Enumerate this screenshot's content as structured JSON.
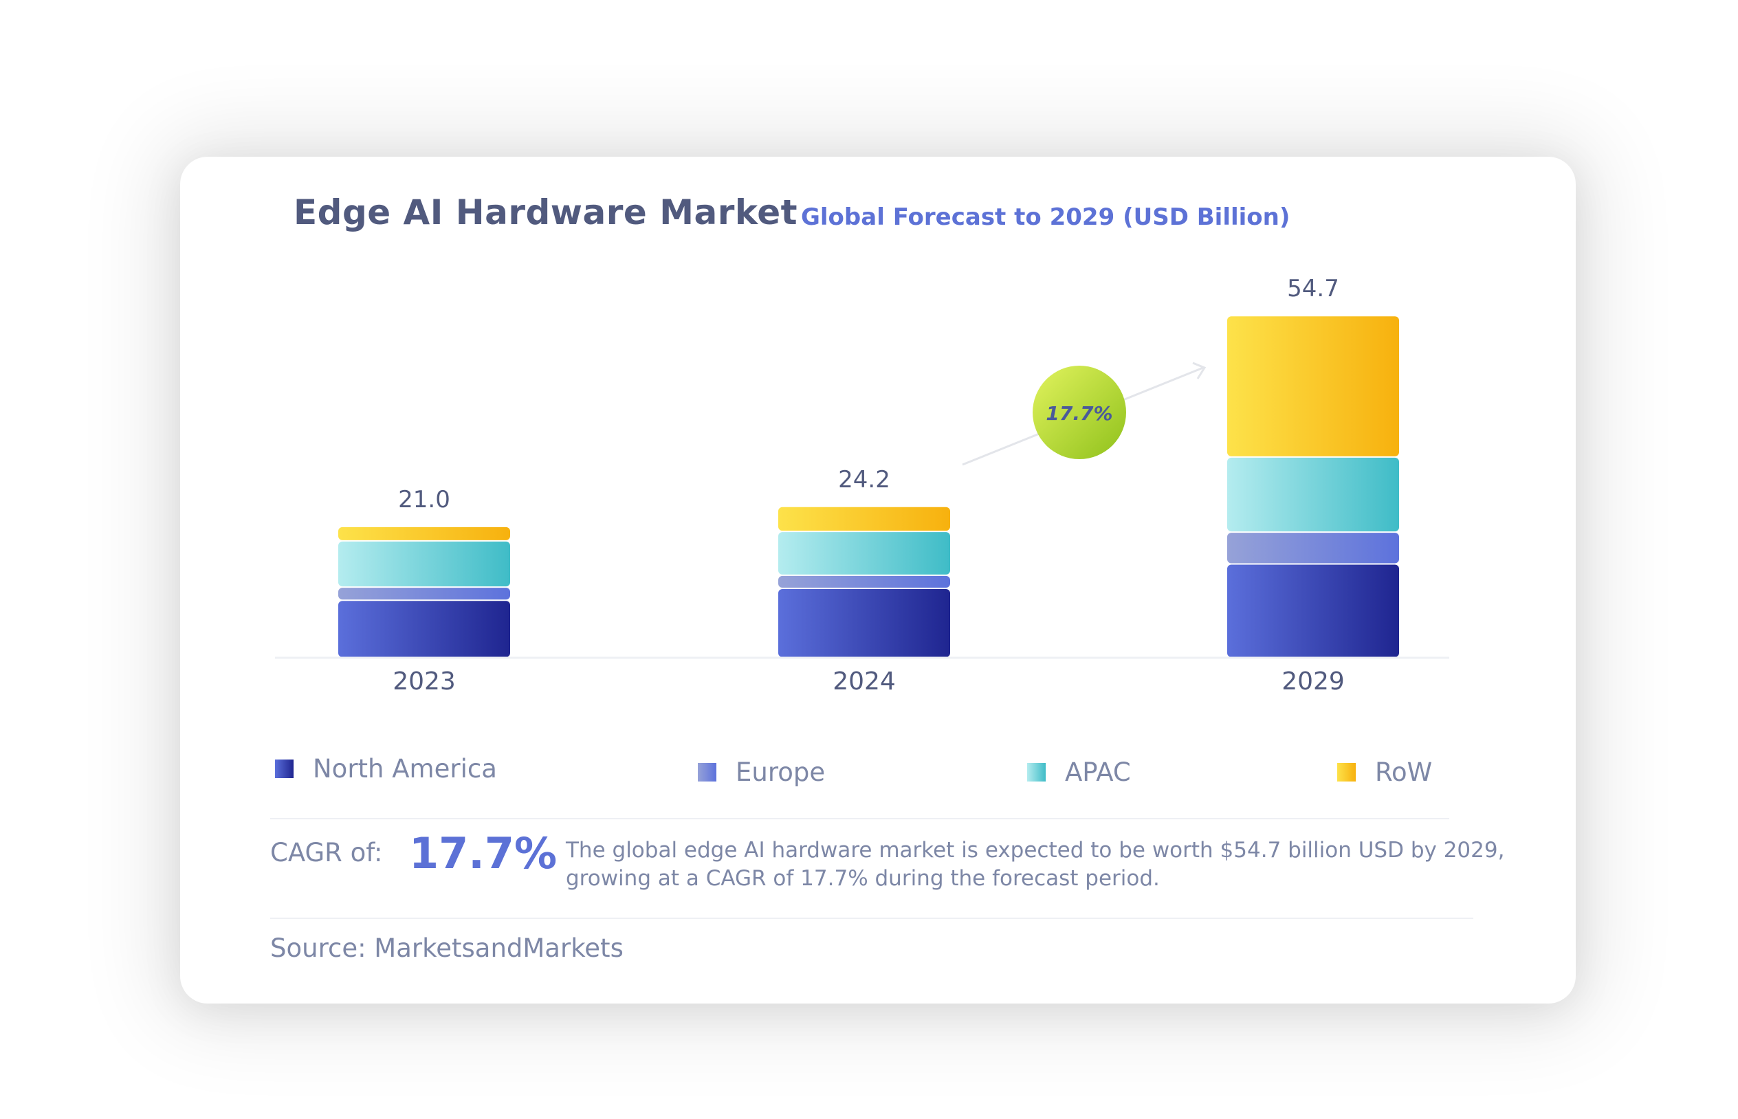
{
  "header": {
    "title": "Edge AI Hardware Market",
    "subtitle": "Global Forecast to 2029 (USD Billion)"
  },
  "chart_data": {
    "type": "bar",
    "stacked": true,
    "categories": [
      "2023",
      "2024",
      "2029"
    ],
    "series": [
      {
        "name": "North America",
        "values": [
          9.2,
          11.1,
          15.0
        ]
      },
      {
        "name": "Europe",
        "values": [
          2.1,
          2.1,
          5.1
        ]
      },
      {
        "name": "APAC",
        "values": [
          7.4,
          7.0,
          12.0
        ]
      },
      {
        "name": "RoW",
        "values": [
          2.3,
          4.0,
          22.6
        ]
      }
    ],
    "totals": [
      21.0,
      24.2,
      54.7
    ],
    "total_labels": [
      "21.0",
      "24.2",
      "54.7"
    ],
    "growth_badge": "17.7%",
    "legend": [
      "North America",
      "Europe",
      "APAC",
      "RoW"
    ],
    "legend_position": "bottom"
  },
  "colors": {
    "north_america": [
      "#5b6fdb",
      "#1f2590"
    ],
    "europe": [
      "#96a2d8",
      "#5d72dc"
    ],
    "apac": [
      "#b4ecef",
      "#3fbcc7"
    ],
    "row": [
      "#fde24a",
      "#f7b10e"
    ],
    "badge": [
      "#d9ee5a",
      "#95c41c"
    ],
    "accent": "#5c71d6",
    "text_muted": "#7d87a6",
    "title": "#515a7e"
  },
  "cagr": {
    "label": "CAGR of:",
    "value": "17.7%",
    "summary": "The global edge AI hardware market is expected to be worth $54.7 billion USD by 2029, growing at a CAGR of 17.7% during the forecast period."
  },
  "source": "Source: MarketsandMarkets"
}
